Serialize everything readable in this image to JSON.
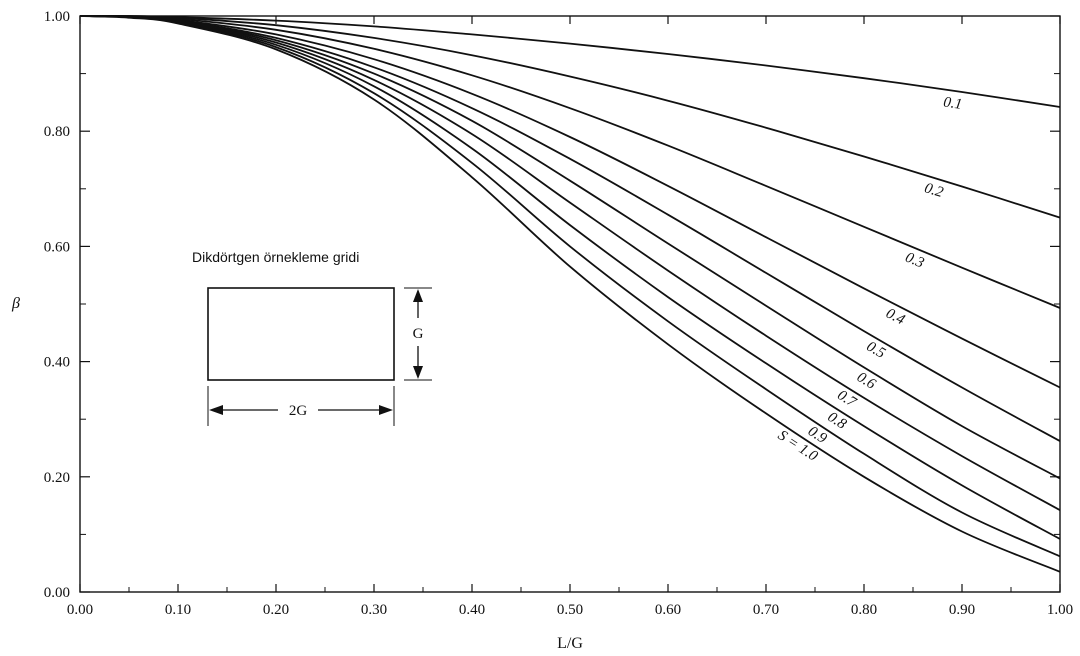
{
  "chart_data": {
    "type": "line",
    "xlabel": "L/G",
    "ylabel": "β",
    "xlim": [
      0,
      1
    ],
    "ylim": [
      0,
      1
    ],
    "grid": false,
    "x_ticks": [
      0,
      0.1,
      0.2,
      0.3,
      0.4,
      0.5,
      0.6,
      0.7,
      0.8,
      0.9,
      1.0
    ],
    "x_tick_labels": [
      "0.00",
      "0.10",
      "0.20",
      "0.30",
      "0.40",
      "0.50",
      "0.60",
      "0.70",
      "0.80",
      "0.90",
      "1.00"
    ],
    "y_ticks": [
      0,
      0.2,
      0.4,
      0.6,
      0.8,
      1.0
    ],
    "y_tick_labels": [
      "0.00",
      "0.20",
      "0.40",
      "0.60",
      "0.80",
      "1.00"
    ],
    "series": [
      {
        "name": "0.1",
        "label": "0.1",
        "x": [
          0,
          0.05,
          0.1,
          0.2,
          0.3,
          0.4,
          0.5,
          0.6,
          0.7,
          0.8,
          0.9,
          1.0
        ],
        "y": [
          1.0,
          1.0,
          0.998,
          0.992,
          0.982,
          0.968,
          0.952,
          0.934,
          0.914,
          0.892,
          0.868,
          0.842
        ]
      },
      {
        "name": "0.2",
        "label": "0.2",
        "x": [
          0,
          0.05,
          0.1,
          0.2,
          0.3,
          0.4,
          0.5,
          0.6,
          0.7,
          0.8,
          0.9,
          1.0
        ],
        "y": [
          1.0,
          1.0,
          0.997,
          0.984,
          0.962,
          0.932,
          0.895,
          0.853,
          0.806,
          0.756,
          0.704,
          0.65
        ]
      },
      {
        "name": "0.3",
        "label": "0.3",
        "x": [
          0,
          0.05,
          0.1,
          0.2,
          0.3,
          0.4,
          0.5,
          0.6,
          0.7,
          0.8,
          0.9,
          1.0
        ],
        "y": [
          1.0,
          0.999,
          0.995,
          0.976,
          0.943,
          0.897,
          0.84,
          0.775,
          0.705,
          0.634,
          0.563,
          0.493
        ]
      },
      {
        "name": "0.4",
        "label": "0.4",
        "x": [
          0,
          0.05,
          0.1,
          0.2,
          0.3,
          0.4,
          0.5,
          0.6,
          0.7,
          0.8,
          0.9,
          1.0
        ],
        "y": [
          1.0,
          0.999,
          0.993,
          0.968,
          0.925,
          0.865,
          0.79,
          0.705,
          0.616,
          0.527,
          0.44,
          0.355
        ]
      },
      {
        "name": "0.5",
        "label": "0.5",
        "x": [
          0,
          0.05,
          0.1,
          0.2,
          0.3,
          0.4,
          0.5,
          0.6,
          0.7,
          0.8,
          0.9,
          1.0
        ],
        "y": [
          1.0,
          0.999,
          0.992,
          0.962,
          0.911,
          0.84,
          0.752,
          0.655,
          0.554,
          0.453,
          0.355,
          0.262
        ]
      },
      {
        "name": "0.6",
        "label": "0.6",
        "x": [
          0,
          0.05,
          0.1,
          0.2,
          0.3,
          0.4,
          0.5,
          0.6,
          0.7,
          0.8,
          0.9,
          1.0
        ],
        "y": [
          1.0,
          0.998,
          0.991,
          0.958,
          0.9,
          0.818,
          0.714,
          0.605,
          0.497,
          0.39,
          0.288,
          0.197
        ]
      },
      {
        "name": "0.7",
        "label": "0.7",
        "x": [
          0,
          0.05,
          0.1,
          0.2,
          0.3,
          0.4,
          0.5,
          0.6,
          0.7,
          0.8,
          0.9,
          1.0
        ],
        "y": [
          1.0,
          0.998,
          0.99,
          0.954,
          0.889,
          0.795,
          0.676,
          0.558,
          0.445,
          0.337,
          0.236,
          0.142
        ]
      },
      {
        "name": "0.8",
        "label": "0.8",
        "x": [
          0,
          0.05,
          0.1,
          0.2,
          0.3,
          0.4,
          0.5,
          0.6,
          0.7,
          0.8,
          0.9,
          1.0
        ],
        "y": [
          1.0,
          0.998,
          0.989,
          0.95,
          0.878,
          0.77,
          0.637,
          0.512,
          0.397,
          0.288,
          0.185,
          0.092
        ]
      },
      {
        "name": "0.9",
        "label": "0.9",
        "x": [
          0,
          0.05,
          0.1,
          0.2,
          0.3,
          0.4,
          0.5,
          0.6,
          0.7,
          0.8,
          0.9,
          1.0
        ],
        "y": [
          1.0,
          0.998,
          0.988,
          0.946,
          0.866,
          0.745,
          0.6,
          0.47,
          0.352,
          0.24,
          0.138,
          0.062
        ]
      },
      {
        "name": "1.0",
        "label": "S = 1.0",
        "x": [
          0,
          0.05,
          0.1,
          0.2,
          0.3,
          0.4,
          0.5,
          0.6,
          0.7,
          0.8,
          0.9,
          1.0
        ],
        "y": [
          1.0,
          0.997,
          0.987,
          0.942,
          0.855,
          0.72,
          0.565,
          0.43,
          0.31,
          0.2,
          0.105,
          0.035
        ]
      }
    ],
    "inset": {
      "title": "Dikdörtgen örnekleme gridi",
      "height_label": "G",
      "width_label": "2G"
    }
  }
}
